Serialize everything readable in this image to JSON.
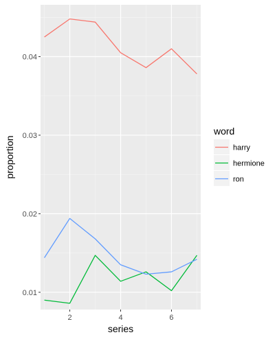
{
  "chart_data": {
    "type": "line",
    "title": "",
    "xlabel": "series",
    "ylabel": "proportion",
    "x": [
      1,
      2,
      3,
      4,
      5,
      6,
      7
    ],
    "xlim": [
      0.85,
      7.15
    ],
    "ylim": [
      0.0078,
      0.0466
    ],
    "x_ticks": [
      2,
      4,
      6
    ],
    "x_tick_labels": [
      "2",
      "4",
      "6"
    ],
    "y_ticks": [
      0.01,
      0.02,
      0.03,
      0.04
    ],
    "y_tick_labels": [
      "0.01",
      "0.02",
      "0.03",
      "0.04"
    ],
    "grid": true,
    "legend_title": "word",
    "legend_position": "right",
    "series": [
      {
        "name": "harry",
        "color": "#F8766D",
        "values": [
          0.0425,
          0.0448,
          0.0444,
          0.0405,
          0.0386,
          0.041,
          0.0378
        ]
      },
      {
        "name": "hermione",
        "color": "#00BA38",
        "values": [
          0.009,
          0.0086,
          0.0147,
          0.0114,
          0.0126,
          0.0102,
          0.0147
        ]
      },
      {
        "name": "ron",
        "color": "#619CFF",
        "values": [
          0.0144,
          0.0194,
          0.0168,
          0.0135,
          0.0123,
          0.0126,
          0.0142
        ]
      }
    ]
  }
}
